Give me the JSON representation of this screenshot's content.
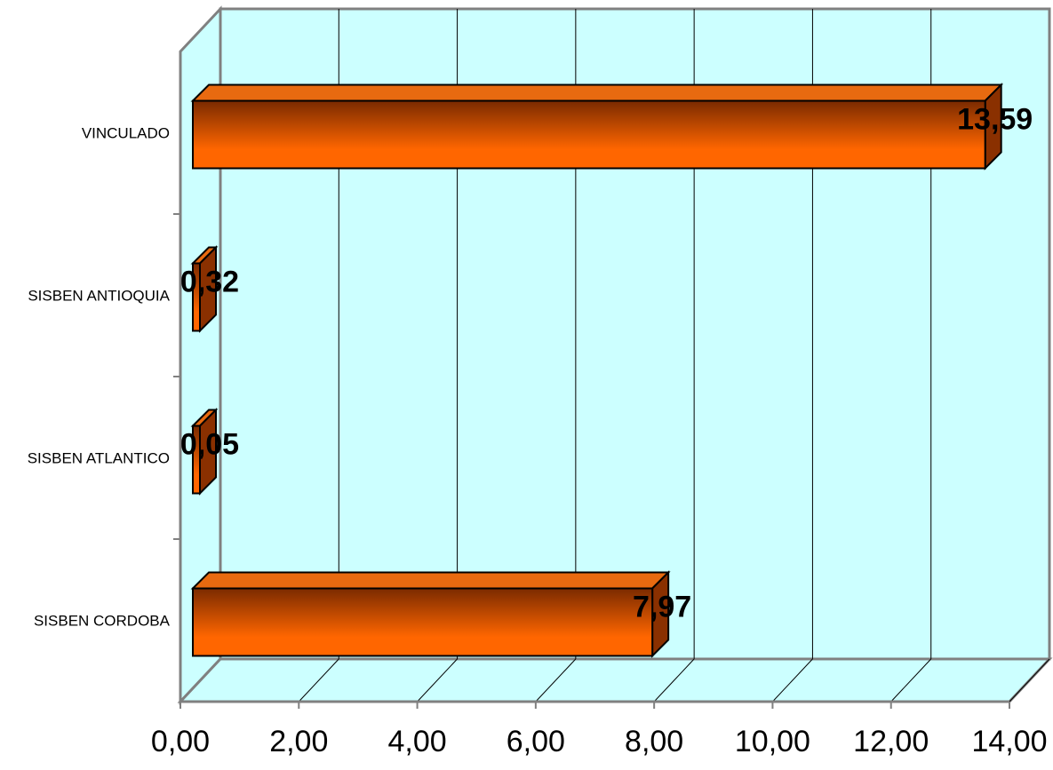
{
  "chart_data": {
    "type": "bar",
    "orientation": "horizontal",
    "style": "3d",
    "categories": [
      "VINCULADO",
      "SISBEN ANTIOQUIA",
      "SISBEN ATLANTICO",
      "SISBEN CORDOBA"
    ],
    "values": [
      13.59,
      0.32,
      0.05,
      7.97
    ],
    "data_labels": [
      "13,59",
      "0,32",
      "0,05",
      "7,97"
    ],
    "xticks": [
      "0,00",
      "2,00",
      "4,00",
      "6,00",
      "8,00",
      "10,00",
      "12,00",
      "14,00"
    ],
    "xlim": [
      0,
      14
    ],
    "title": "",
    "xlabel": "",
    "ylabel": "",
    "grid": true,
    "legend": "none",
    "colors": {
      "plot_background": "#ccffff",
      "bar_front_light": "#ff6600",
      "bar_front_dark": "#7a2a00",
      "bar_top": "#e86a10",
      "bar_side": "#8a3000",
      "gridline": "#000000",
      "axis": "#808080"
    }
  }
}
